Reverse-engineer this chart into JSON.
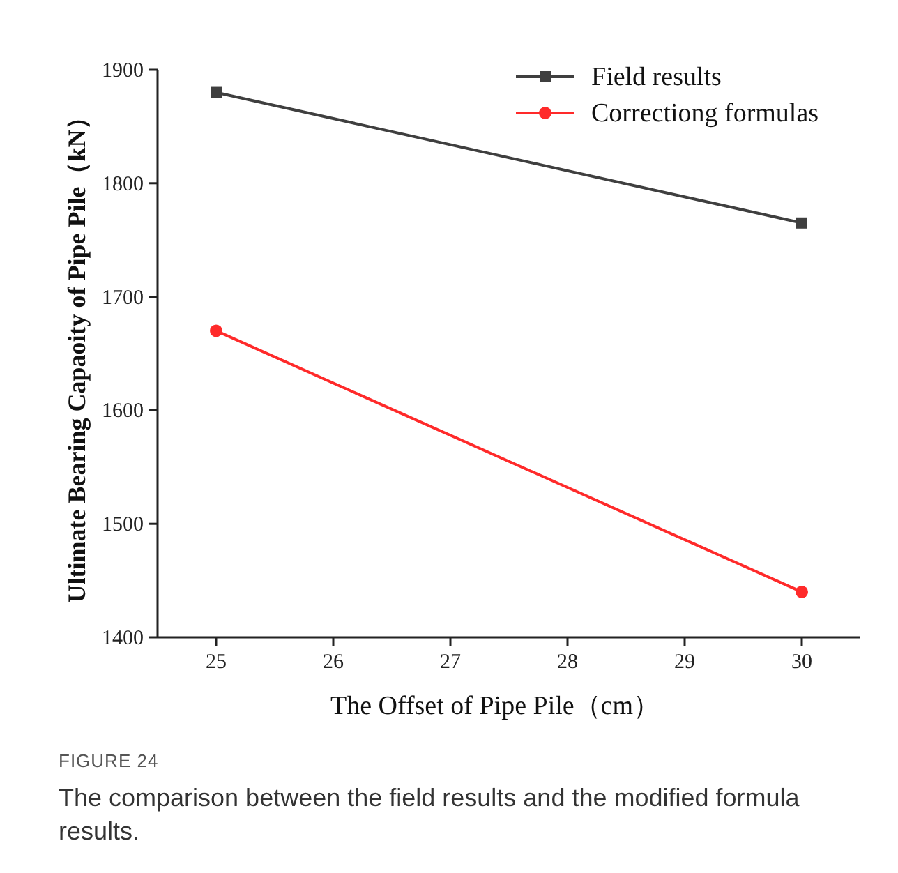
{
  "chart_data": {
    "type": "line",
    "xlabel": "The Offset of Pipe Pile（cm）",
    "ylabel": "Ultimate Bearing Capaoity of Pipe Pile（kN）",
    "x": [
      25,
      30
    ],
    "series": [
      {
        "name": "Field results",
        "color": "#3f3f3f",
        "marker": "square",
        "values": [
          1880,
          1765
        ]
      },
      {
        "name": "Correctiong formulas",
        "color": "#ff2a2a",
        "marker": "circle",
        "values": [
          1670,
          1440
        ]
      }
    ],
    "xlim": [
      24.5,
      30.5
    ],
    "xticks": [
      25,
      26,
      27,
      28,
      29,
      30
    ],
    "ylim": [
      1400,
      1900
    ],
    "yticks": [
      1400,
      1500,
      1600,
      1700,
      1800,
      1900
    ],
    "grid": false,
    "legend": "top right",
    "line_style": "solid",
    "annotations": [
      "FIGURE 24",
      "The comparison between the field results and the modified formula results."
    ]
  }
}
